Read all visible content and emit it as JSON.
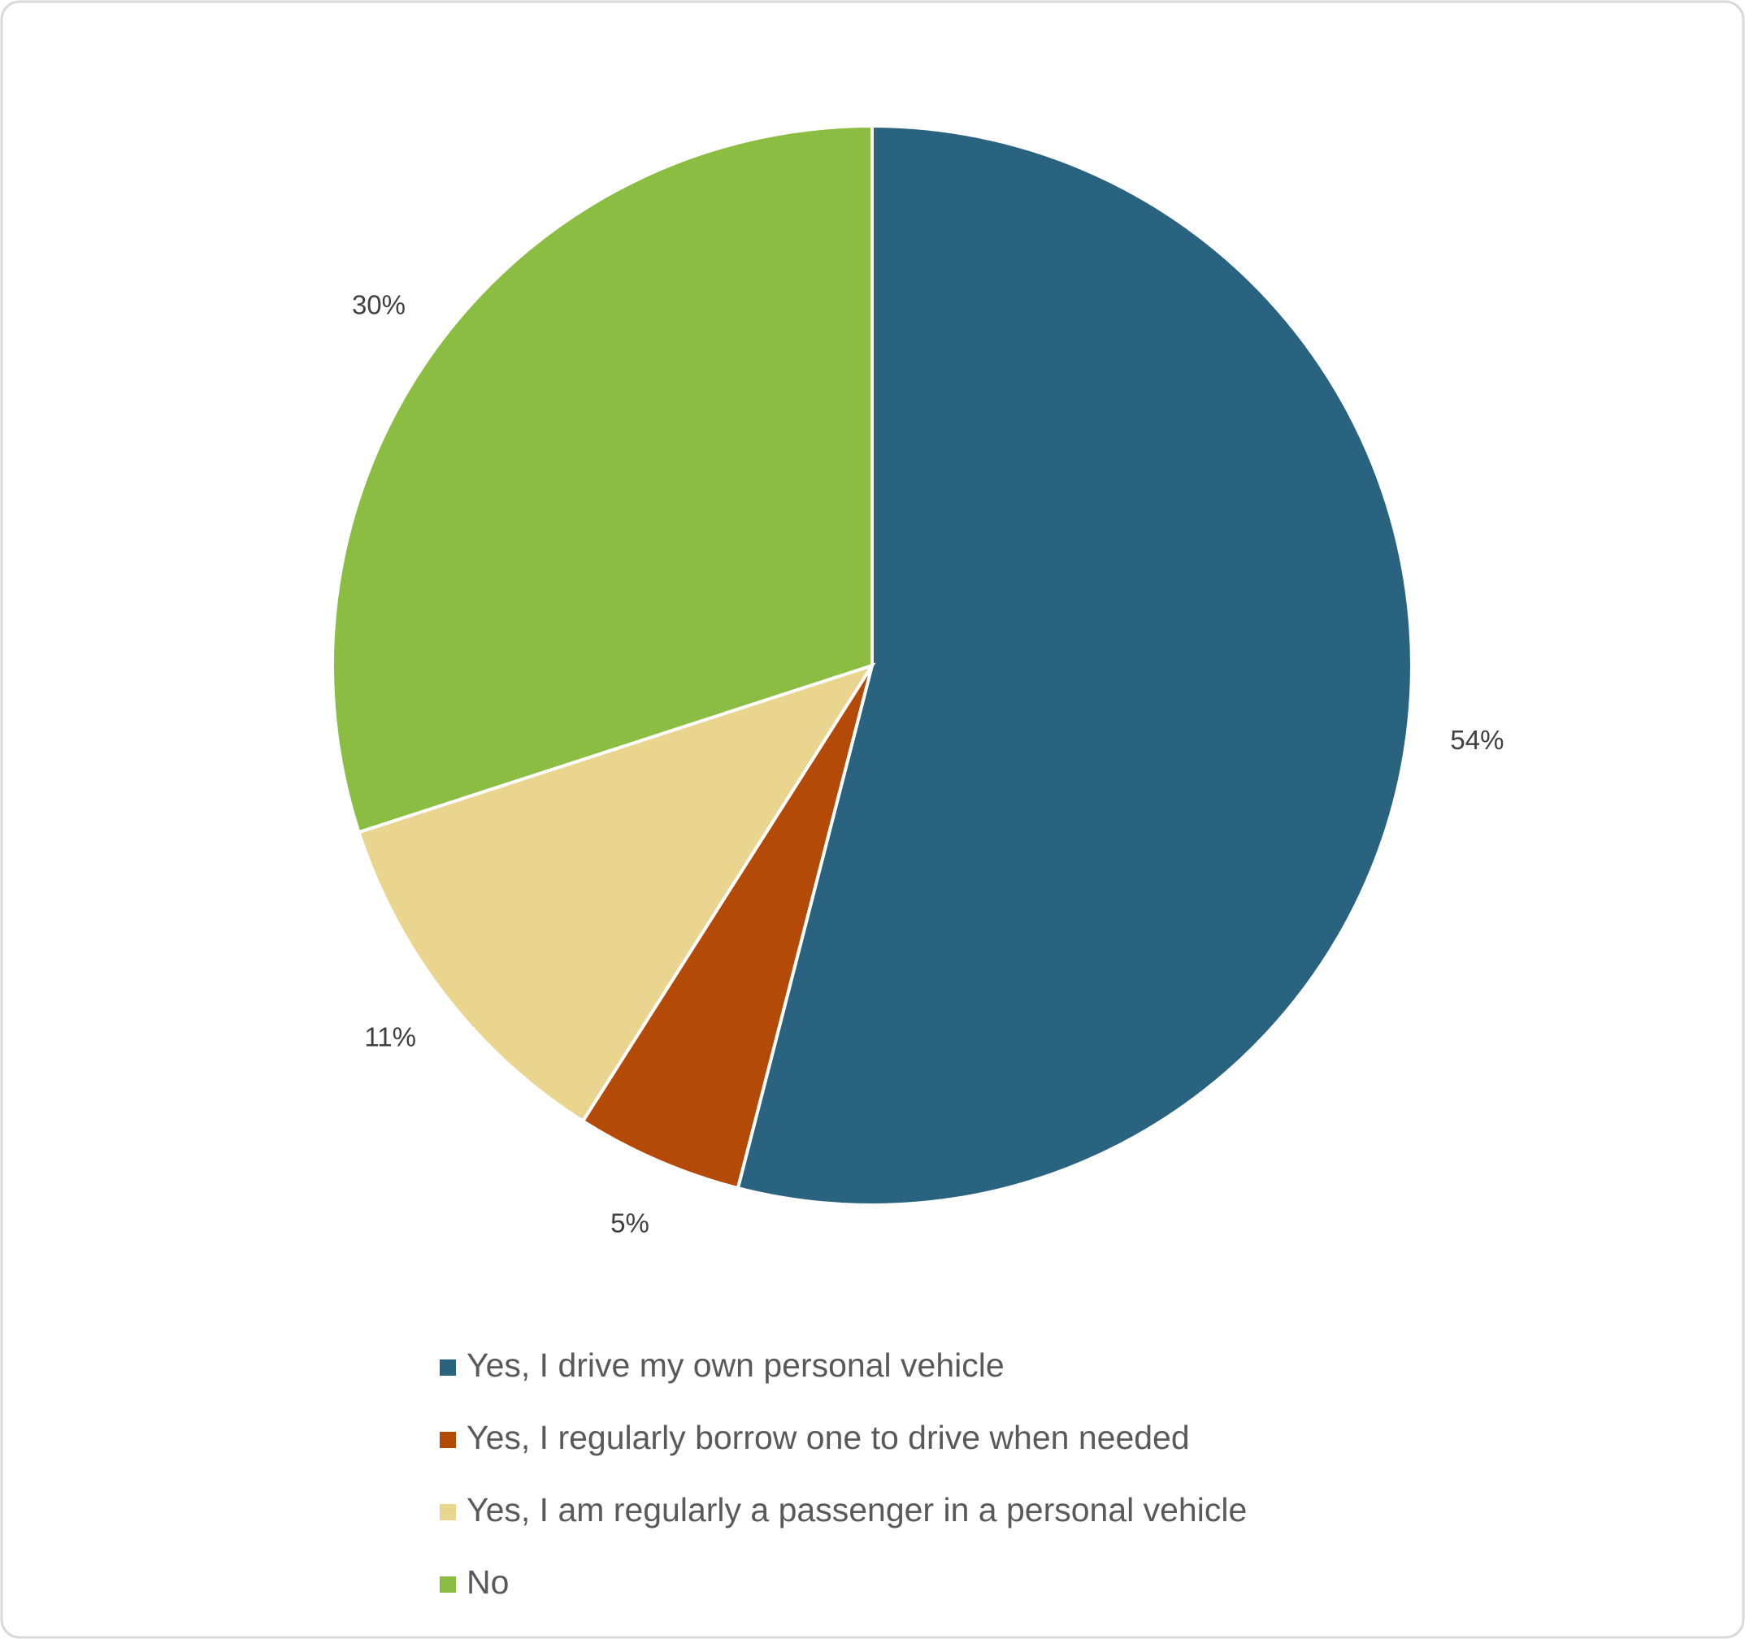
{
  "chart_data": {
    "type": "pie",
    "categories": [
      "Yes, I drive my own personal vehicle",
      "Yes, I regularly borrow one to drive when needed",
      "Yes, I am regularly a passenger in a personal vehicle",
      "No"
    ],
    "values": [
      54,
      5,
      11,
      30
    ],
    "value_labels": [
      "54%",
      "5%",
      "11%",
      "30%"
    ],
    "colors": [
      "#2a6380",
      "#b34a08",
      "#ead58e",
      "#8abd41"
    ],
    "legend": "bottom"
  }
}
